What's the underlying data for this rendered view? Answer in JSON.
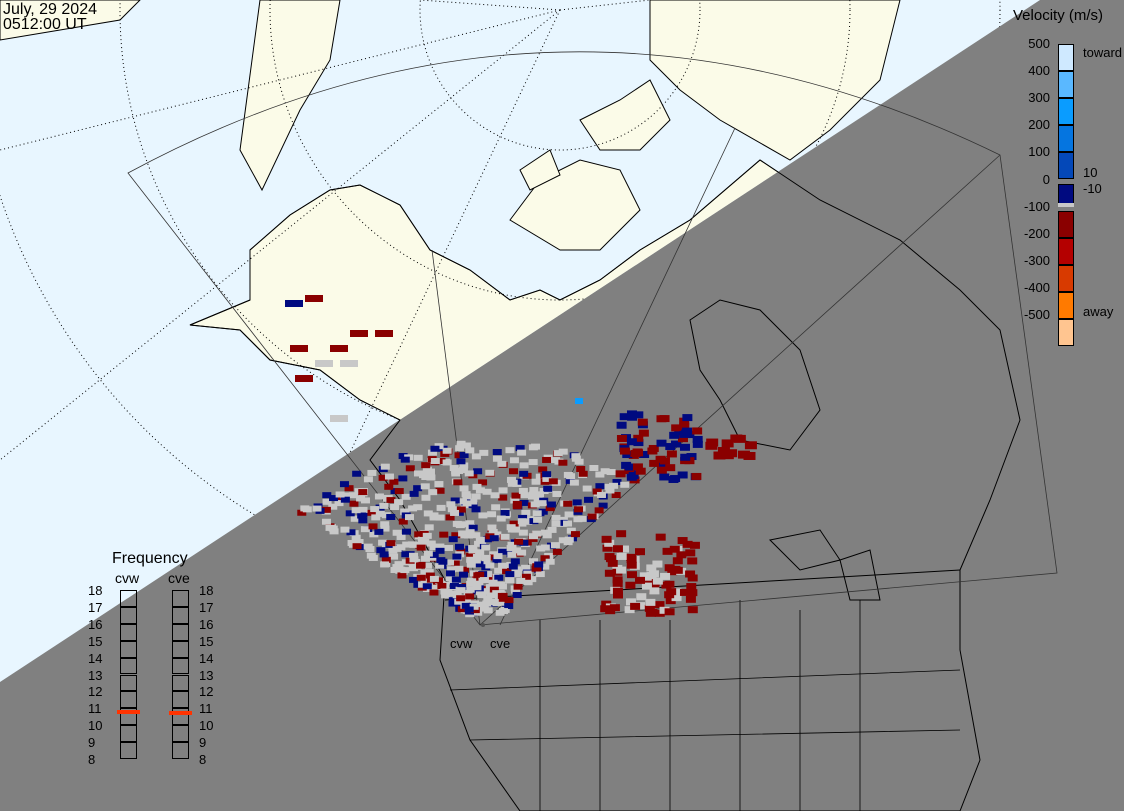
{
  "header": {
    "date": "July, 29 2024",
    "time": "0512:00 UT"
  },
  "colorbar": {
    "title": "Velocity (m/s)",
    "ticks": [
      "500",
      "400",
      "300",
      "200",
      "100",
      "0",
      "-100",
      "-200",
      "-300",
      "-400",
      "-500"
    ],
    "toward_label": "toward",
    "away_label": "away",
    "pos_threshold": "10",
    "neg_threshold": "-10",
    "colors": [
      "#cfe9ff",
      "#5ab8ff",
      "#0a9cff",
      "#0575e0",
      "#0448b8",
      "#000a80",
      "#8a0000",
      "#b40000",
      "#d83a00",
      "#ff7a00",
      "#ffc590"
    ],
    "ground_scatter_color": "#c8c8c8"
  },
  "frequency": {
    "title": "Frequency",
    "radars": [
      {
        "name": "cvw",
        "value_mhz": 10.8
      },
      {
        "name": "cve",
        "value_mhz": 10.7
      }
    ],
    "ticks": [
      "18",
      "17",
      "16",
      "15",
      "14",
      "13",
      "12",
      "11",
      "10",
      "9",
      "8"
    ],
    "marker_color": "#ff3300"
  },
  "map": {
    "radar_labels": [
      "cvw",
      "cve"
    ],
    "day_ocean_color": "#e8f6ff",
    "day_land_color": "#fbfbe8",
    "night_color": "#808080"
  }
}
